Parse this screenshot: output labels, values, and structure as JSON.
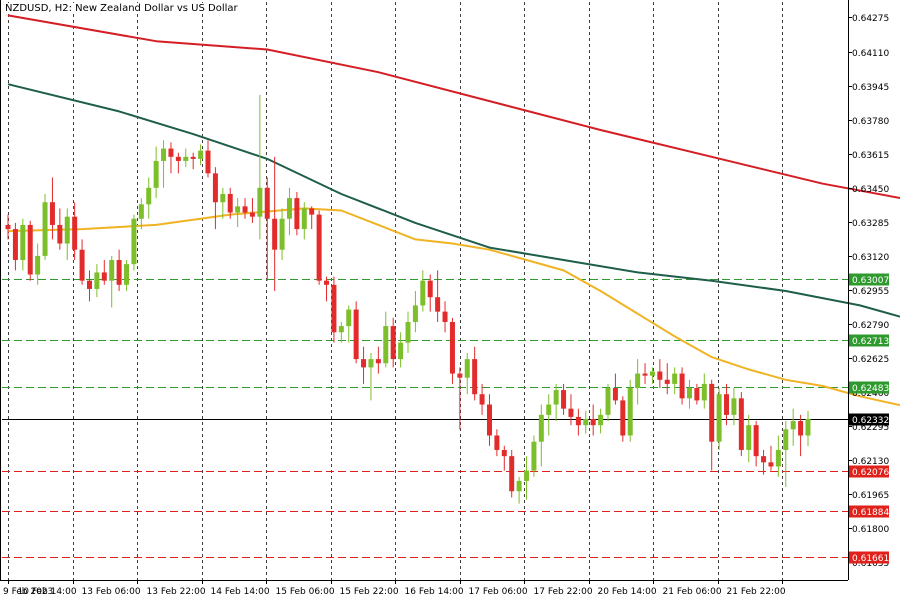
{
  "title": "NZDUSD, H2:  New Zealand Dollar vs US Dollar",
  "colors": {
    "bull": "#7cbf2a",
    "bear": "#e22b2b",
    "ma_fast": "#f0b323",
    "ma_mid": "#1e5e4a",
    "ma_slow": "#d41e24",
    "resistance": "#2e9a2e",
    "support": "#e0201a",
    "current": "#000000",
    "grid": "#000000"
  },
  "chart_data": {
    "type": "candlestick",
    "symbol": "NZDUSD",
    "timeframe": "H2",
    "ylim": [
      0.6155,
      0.6435
    ],
    "y_ticks": [
      "0.64275",
      "0.64110",
      "0.63945",
      "0.63780",
      "0.63615",
      "0.63450",
      "0.63285",
      "0.63120",
      "0.62955",
      "0.62790",
      "0.62625",
      "0.62460",
      "0.62295",
      "0.62130",
      "0.61965",
      "0.61800",
      "0.61635"
    ],
    "x_ticks": [
      "9 Feb 2023",
      "10 Feb 14:00",
      "13 Feb 06:00",
      "13 Feb 22:00",
      "14 Feb 14:00",
      "15 Feb 06:00",
      "15 Feb 22:00",
      "16 Feb 14:00",
      "17 Feb 06:00",
      "17 Feb 22:00",
      "20 Feb 14:00",
      "21 Feb 06:00",
      "21 Feb 22:00"
    ],
    "candles": [
      [
        0.6327,
        0.6332,
        0.632,
        0.6325
      ],
      [
        0.6325,
        0.6328,
        0.6305,
        0.631
      ],
      [
        0.631,
        0.633,
        0.6305,
        0.6327
      ],
      [
        0.6327,
        0.6329,
        0.63,
        0.6303
      ],
      [
        0.6303,
        0.6318,
        0.6298,
        0.6312
      ],
      [
        0.6312,
        0.6342,
        0.631,
        0.6338
      ],
      [
        0.6338,
        0.635,
        0.632,
        0.6327
      ],
      [
        0.6327,
        0.6335,
        0.6315,
        0.6318
      ],
      [
        0.6318,
        0.6335,
        0.631,
        0.6331
      ],
      [
        0.6331,
        0.6338,
        0.631,
        0.6315
      ],
      [
        0.6315,
        0.632,
        0.6298,
        0.63
      ],
      [
        0.63,
        0.6305,
        0.629,
        0.6296
      ],
      [
        0.6296,
        0.6308,
        0.6292,
        0.6304
      ],
      [
        0.6304,
        0.631,
        0.6298,
        0.63
      ],
      [
        0.63,
        0.6312,
        0.6287,
        0.631
      ],
      [
        0.631,
        0.6315,
        0.6295,
        0.6298
      ],
      [
        0.6298,
        0.631,
        0.6295,
        0.6308
      ],
      [
        0.6308,
        0.6332,
        0.6305,
        0.633
      ],
      [
        0.633,
        0.634,
        0.6325,
        0.6337
      ],
      [
        0.6337,
        0.635,
        0.633,
        0.6345
      ],
      [
        0.6345,
        0.6365,
        0.634,
        0.6358
      ],
      [
        0.6358,
        0.6368,
        0.6345,
        0.6364
      ],
      [
        0.6364,
        0.6367,
        0.6352,
        0.636
      ],
      [
        0.636,
        0.6362,
        0.6352,
        0.6358
      ],
      [
        0.6358,
        0.6364,
        0.6355,
        0.636
      ],
      [
        0.636,
        0.6362,
        0.6354,
        0.6359
      ],
      [
        0.6359,
        0.6366,
        0.6356,
        0.6363
      ],
      [
        0.6363,
        0.6368,
        0.635,
        0.6352
      ],
      [
        0.6352,
        0.6355,
        0.6325,
        0.6338
      ],
      [
        0.6338,
        0.6345,
        0.633,
        0.6342
      ],
      [
        0.6342,
        0.6345,
        0.633,
        0.6333
      ],
      [
        0.6333,
        0.634,
        0.6326,
        0.6336
      ],
      [
        0.6336,
        0.634,
        0.633,
        0.6333
      ],
      [
        0.6333,
        0.634,
        0.6328,
        0.6331
      ],
      [
        0.6331,
        0.639,
        0.632,
        0.6345
      ],
      [
        0.6345,
        0.635,
        0.63,
        0.633
      ],
      [
        0.633,
        0.636,
        0.6295,
        0.6315
      ],
      [
        0.6315,
        0.6335,
        0.631,
        0.633
      ],
      [
        0.633,
        0.6345,
        0.6322,
        0.634
      ],
      [
        0.634,
        0.6343,
        0.6322,
        0.6325
      ],
      [
        0.6325,
        0.6338,
        0.632,
        0.6335
      ],
      [
        0.6335,
        0.6336,
        0.6325,
        0.6332
      ],
      [
        0.6332,
        0.6334,
        0.6298,
        0.63
      ],
      [
        0.63,
        0.6302,
        0.629,
        0.6298
      ],
      [
        0.6298,
        0.6302,
        0.627,
        0.6275
      ],
      [
        0.6275,
        0.628,
        0.627,
        0.6278
      ],
      [
        0.6278,
        0.6288,
        0.627,
        0.6286
      ],
      [
        0.6286,
        0.629,
        0.626,
        0.6262
      ],
      [
        0.6262,
        0.6268,
        0.625,
        0.6258
      ],
      [
        0.6258,
        0.6265,
        0.6242,
        0.6262
      ],
      [
        0.6262,
        0.6268,
        0.6255,
        0.626
      ],
      [
        0.626,
        0.6285,
        0.6258,
        0.6278
      ],
      [
        0.6278,
        0.6282,
        0.6258,
        0.6262
      ],
      [
        0.6262,
        0.6275,
        0.6258,
        0.627
      ],
      [
        0.627,
        0.6285,
        0.6265,
        0.628
      ],
      [
        0.628,
        0.6295,
        0.6275,
        0.6288
      ],
      [
        0.6288,
        0.6305,
        0.6285,
        0.63
      ],
      [
        0.63,
        0.6303,
        0.6285,
        0.6292
      ],
      [
        0.6292,
        0.6305,
        0.628,
        0.6285
      ],
      [
        0.6285,
        0.629,
        0.6275,
        0.628
      ],
      [
        0.628,
        0.6282,
        0.625,
        0.6255
      ],
      [
        0.6255,
        0.6258,
        0.6228,
        0.6253
      ],
      [
        0.6253,
        0.6265,
        0.6245,
        0.6262
      ],
      [
        0.6262,
        0.6268,
        0.6242,
        0.6245
      ],
      [
        0.6245,
        0.625,
        0.6235,
        0.624
      ],
      [
        0.624,
        0.6245,
        0.622,
        0.6225
      ],
      [
        0.6225,
        0.6228,
        0.6215,
        0.6218
      ],
      [
        0.6218,
        0.622,
        0.6208,
        0.6215
      ],
      [
        0.6215,
        0.6218,
        0.6195,
        0.6198
      ],
      [
        0.6198,
        0.6205,
        0.6192,
        0.6203
      ],
      [
        0.6203,
        0.6215,
        0.6194,
        0.6208
      ],
      [
        0.6208,
        0.6225,
        0.6205,
        0.6222
      ],
      [
        0.6222,
        0.624,
        0.621,
        0.6235
      ],
      [
        0.6235,
        0.6245,
        0.6225,
        0.624
      ],
      [
        0.624,
        0.625,
        0.6232,
        0.6247
      ],
      [
        0.6247,
        0.625,
        0.6235,
        0.6238
      ],
      [
        0.6238,
        0.6245,
        0.623,
        0.6234
      ],
      [
        0.6234,
        0.6238,
        0.6225,
        0.623
      ],
      [
        0.623,
        0.6237,
        0.6226,
        0.6233
      ],
      [
        0.6233,
        0.624,
        0.6225,
        0.623
      ],
      [
        0.623,
        0.6238,
        0.6226,
        0.6235
      ],
      [
        0.6235,
        0.625,
        0.6232,
        0.6248
      ],
      [
        0.6248,
        0.6255,
        0.624,
        0.6242
      ],
      [
        0.6242,
        0.6244,
        0.6222,
        0.6225
      ],
      [
        0.6225,
        0.6252,
        0.6222,
        0.6248
      ],
      [
        0.6248,
        0.6262,
        0.624,
        0.6255
      ],
      [
        0.6255,
        0.626,
        0.625,
        0.6254
      ],
      [
        0.6254,
        0.6258,
        0.625,
        0.6256
      ],
      [
        0.6256,
        0.6262,
        0.6248,
        0.6252
      ],
      [
        0.6252,
        0.626,
        0.6245,
        0.625
      ],
      [
        0.625,
        0.6258,
        0.6245,
        0.6255
      ],
      [
        0.6255,
        0.6258,
        0.624,
        0.6243
      ],
      [
        0.6243,
        0.6252,
        0.6238,
        0.6248
      ],
      [
        0.6248,
        0.625,
        0.624,
        0.6242
      ],
      [
        0.6242,
        0.6255,
        0.6238,
        0.625
      ],
      [
        0.625,
        0.6252,
        0.6208,
        0.6222
      ],
      [
        0.6222,
        0.6248,
        0.6218,
        0.6245
      ],
      [
        0.6245,
        0.625,
        0.623,
        0.6235
      ],
      [
        0.6235,
        0.6248,
        0.623,
        0.6243
      ],
      [
        0.6243,
        0.6246,
        0.6215,
        0.6218
      ],
      [
        0.6218,
        0.6235,
        0.6212,
        0.623
      ],
      [
        0.623,
        0.6232,
        0.621,
        0.6215
      ],
      [
        0.6215,
        0.6218,
        0.6206,
        0.6212
      ],
      [
        0.6212,
        0.622,
        0.6208,
        0.621
      ],
      [
        0.621,
        0.6225,
        0.6205,
        0.6218
      ],
      [
        0.6218,
        0.6232,
        0.62,
        0.6228
      ],
      [
        0.6228,
        0.6238,
        0.622,
        0.6232
      ],
      [
        0.6232,
        0.6235,
        0.6215,
        0.6225
      ],
      [
        0.6225,
        0.6237,
        0.622,
        0.6233
      ]
    ],
    "series": [
      {
        "kind": "ma",
        "color_key": "ma_slow",
        "points": [
          [
            0,
            0.64285
          ],
          [
            20,
            0.6416
          ],
          [
            35,
            0.6412
          ],
          [
            50,
            0.6401
          ],
          [
            65,
            0.6387
          ],
          [
            80,
            0.6373
          ],
          [
            95,
            0.636
          ],
          [
            110,
            0.6347
          ],
          [
            125,
            0.6337
          ]
        ]
      },
      {
        "kind": "ma",
        "color_key": "ma_mid",
        "points": [
          [
            0,
            0.63952
          ],
          [
            15,
            0.6382
          ],
          [
            25,
            0.6371
          ],
          [
            35,
            0.6359
          ],
          [
            45,
            0.6342
          ],
          [
            55,
            0.6328
          ],
          [
            65,
            0.6316
          ],
          [
            75,
            0.631
          ],
          [
            85,
            0.6304
          ],
          [
            95,
            0.63
          ],
          [
            105,
            0.6295
          ],
          [
            115,
            0.6288
          ],
          [
            125,
            0.6278
          ]
        ]
      },
      {
        "kind": "ma",
        "color_key": "ma_fast",
        "points": [
          [
            0,
            0.6324
          ],
          [
            10,
            0.6325
          ],
          [
            20,
            0.6327
          ],
          [
            30,
            0.6332
          ],
          [
            40,
            0.6335
          ],
          [
            45,
            0.6334
          ],
          [
            50,
            0.6327
          ],
          [
            55,
            0.632
          ],
          [
            60,
            0.6318
          ],
          [
            65,
            0.6315
          ],
          [
            70,
            0.631
          ],
          [
            75,
            0.6305
          ],
          [
            80,
            0.6295
          ],
          [
            85,
            0.6284
          ],
          [
            90,
            0.6273
          ],
          [
            95,
            0.6263
          ],
          [
            100,
            0.6257
          ],
          [
            105,
            0.6252
          ],
          [
            110,
            0.6249
          ],
          [
            115,
            0.6244
          ],
          [
            120,
            0.624
          ],
          [
            125,
            0.6237
          ]
        ]
      }
    ],
    "levels": [
      {
        "label": "0.63007",
        "value": 0.63007,
        "kind": "resistance"
      },
      {
        "label": "0.62713",
        "value": 0.62713,
        "kind": "resistance"
      },
      {
        "label": "0.62483",
        "value": 0.62483,
        "kind": "resistance"
      },
      {
        "label": "0.62332",
        "value": 0.62332,
        "kind": "current"
      },
      {
        "label": "0.62076",
        "value": 0.62076,
        "kind": "support"
      },
      {
        "label": "0.61884",
        "value": 0.61884,
        "kind": "support"
      },
      {
        "label": "0.61661",
        "value": 0.61661,
        "kind": "support"
      }
    ]
  }
}
